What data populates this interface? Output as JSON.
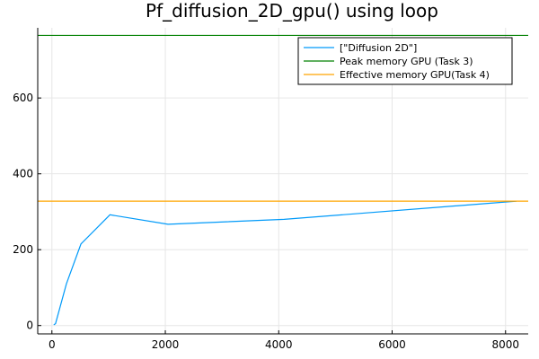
{
  "chart_data": {
    "type": "line",
    "title": "Pf_diffusion_2D_gpu() using loop",
    "xlabel": "",
    "ylabel": "",
    "xlim": [
      -250,
      8400
    ],
    "ylim": [
      -22,
      785
    ],
    "x_ticks": [
      0,
      2000,
      4000,
      6000,
      8000
    ],
    "y_ticks": [
      0,
      200,
      400,
      600
    ],
    "grid": true,
    "legend_position": "top-right",
    "series": [
      {
        "name": "[\"Diffusion 2D\"]",
        "color": "#009af9",
        "kind": "line",
        "x": [
          32,
          64,
          128,
          256,
          512,
          1024,
          2048,
          4096,
          8192
        ],
        "y": [
          2,
          5,
          40,
          110,
          215,
          292,
          267,
          280,
          328
        ]
      },
      {
        "name": "Peak memory GPU (Task 3)",
        "color": "#008000",
        "kind": "hline",
        "y": 765
      },
      {
        "name": "Effective memory GPU(Task 4)",
        "color": "#ffa500",
        "kind": "hline",
        "y": 328
      }
    ]
  }
}
